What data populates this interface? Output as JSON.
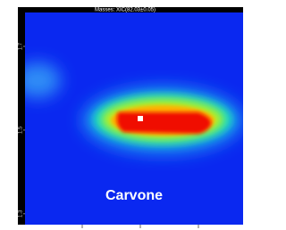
{
  "chart_data": {
    "type": "heatmap",
    "title": "Masses:  XIC(82.03±0.05)",
    "annotation": "Carvone",
    "ylim": [
      1.274,
      1.781
    ],
    "yticks": [
      1.3,
      1.5,
      1.7
    ]
  }
}
